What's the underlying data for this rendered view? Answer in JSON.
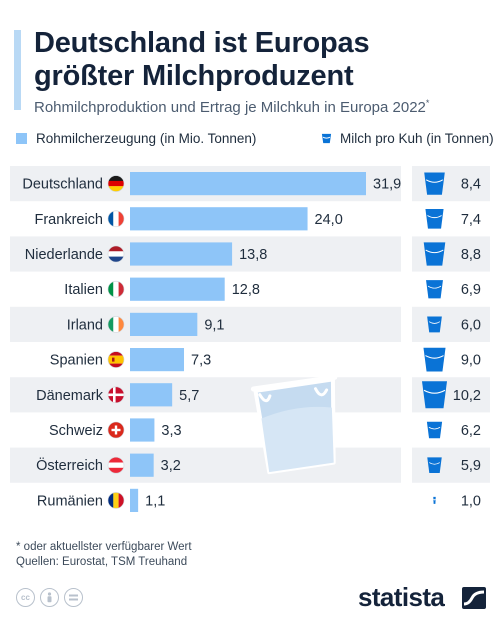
{
  "title": "Deutschland ist Europas größter Milchproduzent",
  "subtitle": "Rohmilchproduktion und Ertrag je Milchkuh in Europa 2022",
  "subtitle_mark": "*",
  "legend": {
    "production": "Rohmilcherzeugung (in Mio. Tonnen)",
    "per_cow": "Milch pro Kuh (in Tonnen)"
  },
  "footnote": {
    "note": "* oder aktuellster verfügbarer Wert",
    "sources": "Quellen: Eurostat, TSM Treuhand"
  },
  "brand": "statista",
  "colors": {
    "bar": "#8ec5f8",
    "cup": "#0a73d6",
    "band": "#eef0f3",
    "text": "#1f2d3d"
  },
  "chart_data": {
    "type": "bar",
    "orientation": "horizontal",
    "categories": [
      "Deutschland",
      "Frankreich",
      "Niederlande",
      "Italien",
      "Irland",
      "Spanien",
      "Dänemark",
      "Schweiz",
      "Österreich",
      "Rumänien"
    ],
    "series": [
      {
        "name": "Rohmilcherzeugung (in Mio. Tonnen)",
        "values": [
          31.9,
          24.0,
          13.8,
          12.8,
          9.1,
          7.3,
          5.7,
          3.3,
          3.2,
          1.1
        ],
        "labels": [
          "31,9",
          "24,0",
          "13,8",
          "12,8",
          "9,1",
          "7,3",
          "5,7",
          "3,3",
          "3,2",
          "1,1"
        ]
      },
      {
        "name": "Milch pro Kuh (in Tonnen)",
        "values": [
          8.4,
          7.4,
          8.8,
          6.9,
          6.0,
          9.0,
          10.2,
          6.2,
          5.9,
          1.0
        ],
        "labels": [
          "8,4",
          "7,4",
          "8,8",
          "6,9",
          "6,0",
          "9,0",
          "10,2",
          "6,2",
          "5,9",
          "1,0"
        ]
      }
    ],
    "flags": [
      "de",
      "fr",
      "nl",
      "it",
      "ie",
      "es",
      "dk",
      "ch",
      "at",
      "ro"
    ],
    "xlim": [
      0,
      31.9
    ],
    "grid": false,
    "legend_position": "top"
  }
}
